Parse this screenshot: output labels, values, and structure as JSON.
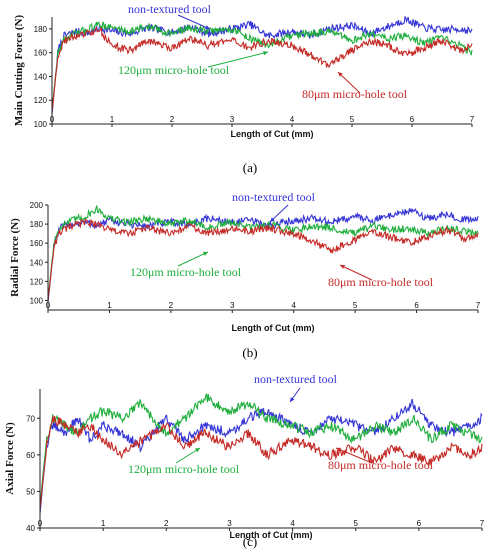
{
  "chart_data": [
    {
      "type": "line",
      "panel_label": "(a)",
      "xlabel": "Length of Cut (mm)",
      "ylabel": "Main Cutting Force (N)",
      "xlim": [
        0,
        7
      ],
      "ylim": [
        100,
        190
      ],
      "x_ticks": [
        0,
        1,
        2,
        3,
        4,
        5,
        6,
        7
      ],
      "y_ticks": [
        100,
        120,
        140,
        160,
        180
      ],
      "grid": false,
      "series": [
        {
          "name": "non-textured tool",
          "color": "#3535d6",
          "x": [
            0,
            0.1,
            0.2,
            0.4,
            0.6,
            0.8,
            1.0,
            1.3,
            1.6,
            2.0,
            2.3,
            2.6,
            3.0,
            3.3,
            3.6,
            4.0,
            4.3,
            4.6,
            5.0,
            5.3,
            5.6,
            5.9,
            6.2,
            6.5,
            6.8,
            7.0
          ],
          "y": [
            108,
            162,
            174,
            178,
            176,
            181,
            178,
            176,
            181,
            177,
            182,
            176,
            180,
            184,
            174,
            178,
            174,
            180,
            183,
            176,
            182,
            188,
            181,
            179,
            180,
            178
          ]
        },
        {
          "name": "120μm micro-hole tool",
          "color": "#1fae3c",
          "x": [
            0,
            0.1,
            0.2,
            0.4,
            0.6,
            0.8,
            1.0,
            1.3,
            1.6,
            2.0,
            2.3,
            2.6,
            3.0,
            3.3,
            3.6,
            4.0,
            4.3,
            4.6,
            5.0,
            5.3,
            5.6,
            5.9,
            6.2,
            6.5,
            6.8,
            7.0
          ],
          "y": [
            112,
            160,
            171,
            176,
            180,
            184,
            181,
            178,
            182,
            176,
            181,
            178,
            180,
            172,
            166,
            174,
            176,
            178,
            170,
            176,
            172,
            174,
            168,
            172,
            166,
            160
          ]
        },
        {
          "name": "80μm micro-hole tool",
          "color": "#c42a26",
          "x": [
            0,
            0.1,
            0.2,
            0.4,
            0.6,
            0.8,
            1.0,
            1.3,
            1.6,
            2.0,
            2.3,
            2.6,
            3.0,
            3.3,
            3.6,
            4.0,
            4.3,
            4.6,
            5.0,
            5.3,
            5.6,
            5.9,
            6.2,
            6.5,
            6.8,
            7.0
          ],
          "y": [
            110,
            158,
            170,
            174,
            176,
            179,
            166,
            162,
            170,
            164,
            172,
            166,
            170,
            164,
            170,
            166,
            158,
            150,
            162,
            170,
            166,
            158,
            164,
            170,
            162,
            165
          ]
        }
      ],
      "annotations": [
        {
          "text": "non-textured tool",
          "series": 0
        },
        {
          "text": "120μm micro-hole tool",
          "series": 1
        },
        {
          "text": "80μm micro-hole tool",
          "series": 2
        }
      ]
    },
    {
      "type": "line",
      "panel_label": "(b)",
      "xlabel": "Length of Cut (mm)",
      "ylabel": "Radial Force (N)",
      "xlim": [
        0,
        7
      ],
      "ylim": [
        90,
        200
      ],
      "x_ticks": [
        0,
        1,
        2,
        3,
        4,
        5,
        6,
        7
      ],
      "y_ticks": [
        100,
        120,
        140,
        160,
        180,
        200
      ],
      "grid": false,
      "series": [
        {
          "name": "non-textured tool",
          "color": "#3535d6",
          "x": [
            0,
            0.1,
            0.2,
            0.4,
            0.6,
            0.8,
            1.0,
            1.3,
            1.6,
            2.0,
            2.3,
            2.6,
            3.0,
            3.3,
            3.6,
            4.0,
            4.3,
            4.6,
            5.0,
            5.3,
            5.6,
            5.9,
            6.2,
            6.5,
            6.8,
            7.0
          ],
          "y": [
            98,
            160,
            176,
            180,
            182,
            178,
            184,
            180,
            178,
            182,
            180,
            186,
            182,
            184,
            178,
            184,
            186,
            182,
            188,
            184,
            190,
            194,
            186,
            190,
            184,
            186
          ]
        },
        {
          "name": "120μm micro-hole tool",
          "color": "#1fae3c",
          "x": [
            0,
            0.1,
            0.2,
            0.4,
            0.6,
            0.8,
            1.0,
            1.3,
            1.6,
            2.0,
            2.3,
            2.6,
            3.0,
            3.3,
            3.6,
            4.0,
            4.3,
            4.6,
            5.0,
            5.3,
            5.6,
            5.9,
            6.2,
            6.5,
            6.8,
            7.0
          ],
          "y": [
            102,
            162,
            178,
            184,
            188,
            196,
            186,
            182,
            186,
            180,
            184,
            176,
            182,
            176,
            180,
            174,
            178,
            176,
            170,
            178,
            174,
            176,
            170,
            176,
            172,
            170
          ]
        },
        {
          "name": "80μm micro-hole tool",
          "color": "#c42a26",
          "x": [
            0,
            0.1,
            0.2,
            0.4,
            0.6,
            0.8,
            1.0,
            1.3,
            1.6,
            2.0,
            2.3,
            2.6,
            3.0,
            3.3,
            3.6,
            4.0,
            4.3,
            4.6,
            5.0,
            5.3,
            5.6,
            5.9,
            6.2,
            6.5,
            6.8,
            7.0
          ],
          "y": [
            100,
            158,
            172,
            178,
            182,
            180,
            174,
            170,
            176,
            170,
            178,
            170,
            176,
            172,
            176,
            170,
            162,
            152,
            164,
            172,
            166,
            160,
            168,
            174,
            164,
            168
          ]
        }
      ],
      "annotations": [
        {
          "text": "non-textured tool",
          "series": 0
        },
        {
          "text": "120μm micro-hole tool",
          "series": 1
        },
        {
          "text": "80μm micro-hole tool",
          "series": 2
        }
      ]
    },
    {
      "type": "line",
      "panel_label": "(c)",
      "xlabel": "Length of Cut (mm)",
      "ylabel": "Axial Force (N)",
      "xlim": [
        0,
        7
      ],
      "ylim": [
        40,
        78
      ],
      "x_ticks": [
        0,
        1,
        2,
        3,
        4,
        5,
        6,
        7
      ],
      "y_ticks": [
        40,
        50,
        60,
        70
      ],
      "grid": false,
      "series": [
        {
          "name": "non-textured tool",
          "color": "#3535d6",
          "x": [
            0,
            0.1,
            0.2,
            0.4,
            0.6,
            0.8,
            1.0,
            1.3,
            1.6,
            2.0,
            2.3,
            2.6,
            3.0,
            3.3,
            3.6,
            4.0,
            4.3,
            4.6,
            5.0,
            5.3,
            5.6,
            5.9,
            6.2,
            6.5,
            6.8,
            7.0
          ],
          "y": [
            44,
            62,
            68,
            66,
            70,
            64,
            68,
            66,
            62,
            70,
            64,
            68,
            66,
            70,
            72,
            68,
            66,
            70,
            68,
            66,
            70,
            74,
            68,
            66,
            68,
            70
          ]
        },
        {
          "name": "120μm micro-hole tool",
          "color": "#1fae3c",
          "x": [
            0,
            0.1,
            0.2,
            0.4,
            0.6,
            0.8,
            1.0,
            1.3,
            1.6,
            2.0,
            2.3,
            2.6,
            3.0,
            3.3,
            3.6,
            4.0,
            4.3,
            4.6,
            5.0,
            5.3,
            5.6,
            5.9,
            6.2,
            6.5,
            6.8,
            7.0
          ],
          "y": [
            46,
            64,
            70,
            68,
            66,
            70,
            72,
            70,
            74,
            66,
            70,
            76,
            72,
            74,
            70,
            68,
            66,
            68,
            64,
            68,
            66,
            70,
            64,
            68,
            66,
            64
          ]
        },
        {
          "name": "80μm micro-hole tool",
          "color": "#c42a26",
          "x": [
            0,
            0.1,
            0.2,
            0.4,
            0.6,
            0.8,
            1.0,
            1.3,
            1.6,
            2.0,
            2.3,
            2.6,
            3.0,
            3.3,
            3.6,
            4.0,
            4.3,
            4.6,
            5.0,
            5.3,
            5.6,
            5.9,
            6.2,
            6.5,
            6.8,
            7.0
          ],
          "y": [
            45,
            62,
            70,
            68,
            66,
            68,
            64,
            60,
            64,
            68,
            62,
            66,
            62,
            66,
            60,
            64,
            62,
            60,
            62,
            58,
            62,
            60,
            58,
            62,
            60,
            62
          ]
        }
      ],
      "annotations": [
        {
          "text": "non-textured tool",
          "series": 0
        },
        {
          "text": "120μm micro-hole tool",
          "series": 1
        },
        {
          "text": "80μm micro-hole tool",
          "series": 2
        }
      ]
    }
  ]
}
